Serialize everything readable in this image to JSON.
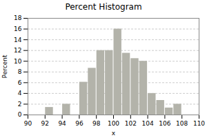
{
  "chart_data": {
    "type": "histogram",
    "title": "Percent Histogram",
    "xlabel": "x",
    "ylabel": "Percent",
    "bins": [
      92,
      93,
      94,
      95,
      96,
      97,
      98,
      99,
      100,
      101,
      102,
      103,
      104,
      105,
      106,
      107,
      108,
      109
    ],
    "values": [
      1.4,
      0.0,
      2.0,
      0.0,
      6.1,
      8.7,
      12.0,
      12.0,
      16.0,
      11.5,
      10.5,
      10.0,
      4.0,
      2.7,
      1.3,
      2.0,
      0.0
    ],
    "color": "#b3b3aa",
    "xlim": [
      90,
      110
    ],
    "xticks": [
      90,
      92,
      94,
      96,
      98,
      100,
      102,
      104,
      106,
      108,
      110
    ],
    "ylim": [
      0,
      18
    ],
    "yticks": [
      0,
      2,
      4,
      6,
      8,
      10,
      12,
      14,
      16,
      18
    ],
    "grid": true
  }
}
